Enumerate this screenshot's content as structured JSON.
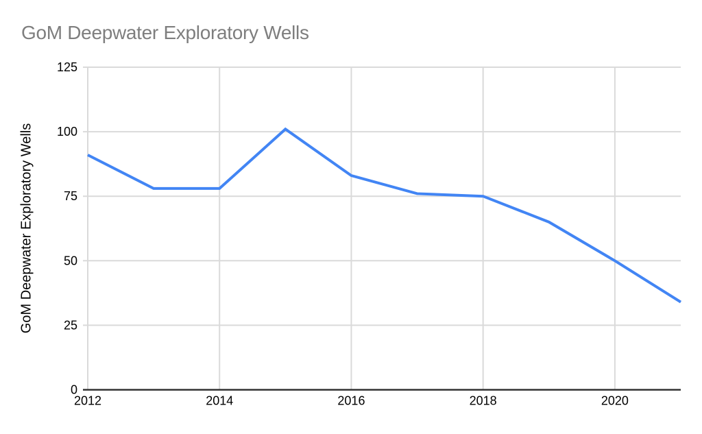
{
  "chart_data": {
    "type": "line",
    "title": "GoM Deepwater Exploratory Wells",
    "ylabel": "GoM Deepwater Exploratory Wells",
    "xlabel": "",
    "x": [
      2012,
      2013,
      2014,
      2015,
      2016,
      2017,
      2018,
      2019,
      2020,
      2021
    ],
    "series": [
      {
        "name": "GoM Deepwater Exploratory Wells",
        "values": [
          91,
          78,
          78,
          101,
          83,
          76,
          75,
          65,
          50,
          34
        ]
      }
    ],
    "xticks": [
      2012,
      2014,
      2016,
      2018,
      2020
    ],
    "yticks": [
      0,
      25,
      50,
      75,
      100,
      125
    ],
    "xlim": [
      2012,
      2021
    ],
    "ylim": [
      0,
      125
    ],
    "grid": true,
    "legend_position": "none",
    "colors": {
      "line": "#4285f4",
      "grid": "#dadada",
      "axis": "#333333",
      "title": "#7e7e7e",
      "tick_label": "#000000",
      "background": "#ffffff"
    }
  }
}
